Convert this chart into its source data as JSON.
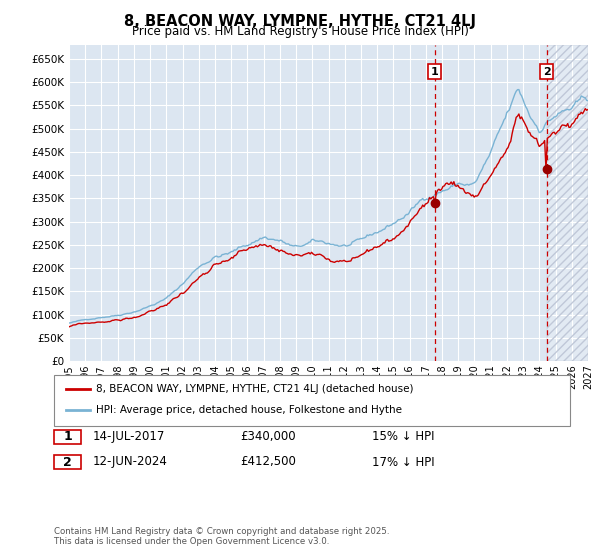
{
  "title": "8, BEACON WAY, LYMPNE, HYTHE, CT21 4LJ",
  "subtitle": "Price paid vs. HM Land Registry's House Price Index (HPI)",
  "background_color": "#ffffff",
  "plot_bg_color": "#dce6f1",
  "grid_color": "#ffffff",
  "hpi_line_color": "#7ab3d4",
  "price_line_color": "#cc0000",
  "dashed_line_color": "#cc0000",
  "hatch_color": "#c0c8d8",
  "ylim": [
    0,
    680000
  ],
  "yticks": [
    0,
    50000,
    100000,
    150000,
    200000,
    250000,
    300000,
    350000,
    400000,
    450000,
    500000,
    550000,
    600000,
    650000
  ],
  "ytick_labels": [
    "£0",
    "£50K",
    "£100K",
    "£150K",
    "£200K",
    "£250K",
    "£300K",
    "£350K",
    "£400K",
    "£450K",
    "£500K",
    "£550K",
    "£600K",
    "£650K"
  ],
  "xstart_year": 1995,
  "xend_year": 2027,
  "marker1_year": 2017.54,
  "marker1_price": 340000,
  "marker1_label": "1",
  "marker1_date": "14-JUL-2017",
  "marker1_amount": "£340,000",
  "marker1_note": "15% ↓ HPI",
  "marker2_year": 2024.45,
  "marker2_price": 412500,
  "marker2_label": "2",
  "marker2_date": "12-JUN-2024",
  "marker2_amount": "£412,500",
  "marker2_note": "17% ↓ HPI",
  "legend_line1": "8, BEACON WAY, LYMPNE, HYTHE, CT21 4LJ (detached house)",
  "legend_line2": "HPI: Average price, detached house, Folkestone and Hythe",
  "footer": "Contains HM Land Registry data © Crown copyright and database right 2025.\nThis data is licensed under the Open Government Licence v3.0."
}
